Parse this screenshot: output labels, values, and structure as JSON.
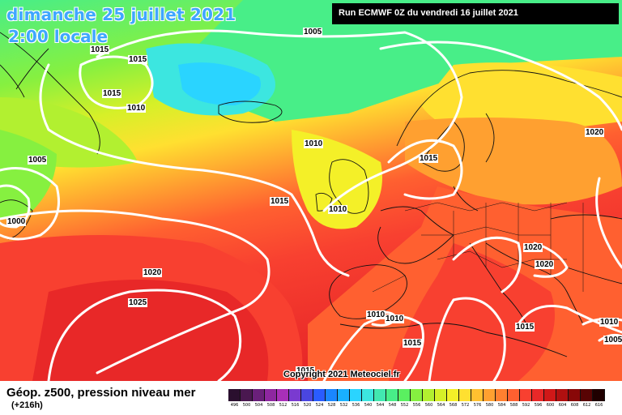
{
  "header": {
    "date": "dimanche 25 juillet 2021",
    "time": "2:00 locale",
    "run": "Run ECMWF 0Z du vendredi 16 juillet 2021"
  },
  "copyright": "Copyright 2021 Meteociel.fr",
  "legend": {
    "title": "Géop. z500, pression niveau mer",
    "subtitle": "(+216h)",
    "scale": [
      {
        "value": "496",
        "color": "#2a0f2e"
      },
      {
        "value": "500",
        "color": "#4a1850"
      },
      {
        "value": "504",
        "color": "#6a207a"
      },
      {
        "value": "508",
        "color": "#8e27a0"
      },
      {
        "value": "512",
        "color": "#a92fb8"
      },
      {
        "value": "516",
        "color": "#7a3ad0"
      },
      {
        "value": "520",
        "color": "#4a46e0"
      },
      {
        "value": "524",
        "color": "#2a5cff"
      },
      {
        "value": "528",
        "color": "#1a86ff"
      },
      {
        "value": "532",
        "color": "#19b0ff"
      },
      {
        "value": "536",
        "color": "#2ad4ff"
      },
      {
        "value": "540",
        "color": "#3ce6e0"
      },
      {
        "value": "544",
        "color": "#42e8b0"
      },
      {
        "value": "548",
        "color": "#48ee88"
      },
      {
        "value": "552",
        "color": "#5af060"
      },
      {
        "value": "556",
        "color": "#86f040"
      },
      {
        "value": "560",
        "color": "#b2f030"
      },
      {
        "value": "564",
        "color": "#d6f028"
      },
      {
        "value": "568",
        "color": "#f4f028"
      },
      {
        "value": "572",
        "color": "#ffe030"
      },
      {
        "value": "576",
        "color": "#ffc030"
      },
      {
        "value": "580",
        "color": "#ffa030"
      },
      {
        "value": "584",
        "color": "#ff8030"
      },
      {
        "value": "588",
        "color": "#ff6030"
      },
      {
        "value": "592",
        "color": "#f84030"
      },
      {
        "value": "596",
        "color": "#e82828"
      },
      {
        "value": "600",
        "color": "#d01818"
      },
      {
        "value": "604",
        "color": "#b01010"
      },
      {
        "value": "608",
        "color": "#880808"
      },
      {
        "value": "612",
        "color": "#580404"
      },
      {
        "value": "616",
        "color": "#200000"
      }
    ]
  },
  "isobars": [
    {
      "text": "1005",
      "id": "a"
    },
    {
      "text": "1015",
      "id": "b"
    },
    {
      "text": "1015",
      "id": "c"
    },
    {
      "text": "1015",
      "id": "d"
    },
    {
      "text": "1010",
      "id": "e"
    },
    {
      "text": "1005",
      "id": "f"
    },
    {
      "text": "1000",
      "id": "g"
    },
    {
      "text": "1010",
      "id": "h"
    },
    {
      "text": "1015",
      "id": "i"
    },
    {
      "text": "1010",
      "id": "j"
    },
    {
      "text": "1015",
      "id": "k"
    },
    {
      "text": "1020",
      "id": "l"
    },
    {
      "text": "1020",
      "id": "m"
    },
    {
      "text": "1020",
      "id": "n"
    },
    {
      "text": "1020",
      "id": "o"
    },
    {
      "text": "1025",
      "id": "p"
    },
    {
      "text": "1010",
      "id": "q"
    },
    {
      "text": "1010",
      "id": "r"
    },
    {
      "text": "1015",
      "id": "s"
    },
    {
      "text": "1015",
      "id": "t"
    },
    {
      "text": "1010",
      "id": "u"
    },
    {
      "text": "1005",
      "id": "v"
    },
    {
      "text": "1015",
      "id": "w"
    }
  ]
}
